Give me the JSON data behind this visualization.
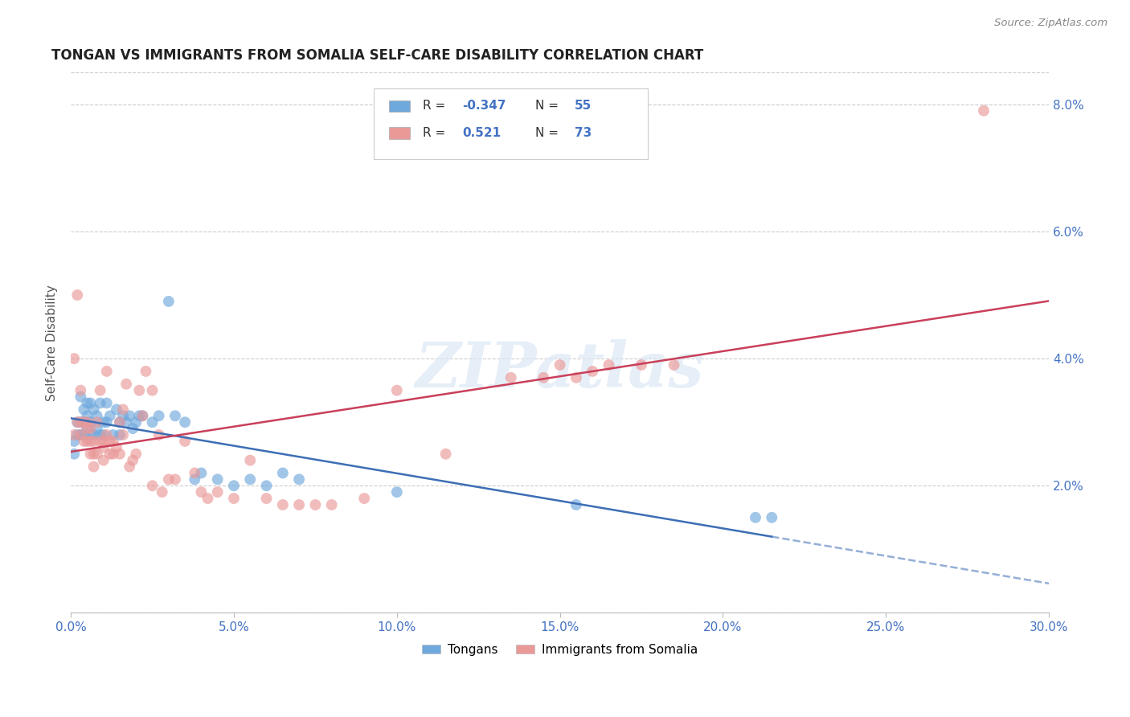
{
  "title": "TONGAN VS IMMIGRANTS FROM SOMALIA SELF-CARE DISABILITY CORRELATION CHART",
  "source": "Source: ZipAtlas.com",
  "ylabel": "Self-Care Disability",
  "xlim": [
    0.0,
    0.3
  ],
  "ylim": [
    0.0,
    0.085
  ],
  "xticks": [
    0.0,
    0.05,
    0.1,
    0.15,
    0.2,
    0.25,
    0.3
  ],
  "yticks": [
    0.0,
    0.02,
    0.04,
    0.06,
    0.08
  ],
  "ytick_labels": [
    "",
    "2.0%",
    "4.0%",
    "6.0%",
    "8.0%"
  ],
  "xtick_labels": [
    "0.0%",
    "5.0%",
    "10.0%",
    "15.0%",
    "20.0%",
    "25.0%",
    "30.0%"
  ],
  "legend_labels": [
    "Tongans",
    "Immigrants from Somalia"
  ],
  "blue_R": "-0.347",
  "blue_N": "55",
  "pink_R": "0.521",
  "pink_N": "73",
  "blue_color": "#6fa8dc",
  "pink_color": "#ea9999",
  "blue_line_color": "#3d6eb5",
  "pink_line_color": "#c9405a",
  "watermark": "ZIPatlas",
  "blue_points_x": [
    0.001,
    0.001,
    0.002,
    0.002,
    0.003,
    0.003,
    0.003,
    0.004,
    0.004,
    0.004,
    0.005,
    0.005,
    0.005,
    0.006,
    0.006,
    0.006,
    0.007,
    0.007,
    0.008,
    0.008,
    0.009,
    0.009,
    0.01,
    0.01,
    0.011,
    0.011,
    0.012,
    0.013,
    0.014,
    0.015,
    0.015,
    0.016,
    0.017,
    0.018,
    0.019,
    0.02,
    0.021,
    0.022,
    0.025,
    0.027,
    0.03,
    0.032,
    0.035,
    0.038,
    0.04,
    0.045,
    0.05,
    0.055,
    0.06,
    0.065,
    0.07,
    0.1,
    0.155,
    0.21,
    0.215
  ],
  "blue_points_y": [
    0.027,
    0.025,
    0.028,
    0.03,
    0.03,
    0.034,
    0.028,
    0.032,
    0.03,
    0.028,
    0.031,
    0.033,
    0.029,
    0.03,
    0.033,
    0.028,
    0.032,
    0.028,
    0.029,
    0.031,
    0.033,
    0.028,
    0.028,
    0.03,
    0.03,
    0.033,
    0.031,
    0.028,
    0.032,
    0.03,
    0.028,
    0.031,
    0.03,
    0.031,
    0.029,
    0.03,
    0.031,
    0.031,
    0.03,
    0.031,
    0.049,
    0.031,
    0.03,
    0.021,
    0.022,
    0.021,
    0.02,
    0.021,
    0.02,
    0.022,
    0.021,
    0.019,
    0.017,
    0.015,
    0.015
  ],
  "pink_points_x": [
    0.001,
    0.001,
    0.002,
    0.002,
    0.003,
    0.003,
    0.003,
    0.004,
    0.004,
    0.005,
    0.005,
    0.005,
    0.006,
    0.006,
    0.006,
    0.007,
    0.007,
    0.007,
    0.008,
    0.008,
    0.009,
    0.009,
    0.01,
    0.01,
    0.01,
    0.011,
    0.011,
    0.012,
    0.012,
    0.013,
    0.013,
    0.014,
    0.015,
    0.015,
    0.016,
    0.016,
    0.017,
    0.018,
    0.019,
    0.02,
    0.021,
    0.022,
    0.023,
    0.025,
    0.027,
    0.028,
    0.03,
    0.032,
    0.035,
    0.038,
    0.04,
    0.042,
    0.045,
    0.05,
    0.055,
    0.06,
    0.065,
    0.07,
    0.075,
    0.08,
    0.09,
    0.1,
    0.115,
    0.135,
    0.145,
    0.15,
    0.155,
    0.16,
    0.165,
    0.175,
    0.185,
    0.28,
    0.025
  ],
  "pink_points_y": [
    0.028,
    0.04,
    0.03,
    0.05,
    0.028,
    0.03,
    0.035,
    0.027,
    0.03,
    0.027,
    0.029,
    0.03,
    0.025,
    0.027,
    0.029,
    0.025,
    0.027,
    0.023,
    0.025,
    0.03,
    0.027,
    0.035,
    0.024,
    0.026,
    0.027,
    0.028,
    0.038,
    0.025,
    0.027,
    0.025,
    0.027,
    0.026,
    0.025,
    0.03,
    0.028,
    0.032,
    0.036,
    0.023,
    0.024,
    0.025,
    0.035,
    0.031,
    0.038,
    0.035,
    0.028,
    0.019,
    0.021,
    0.021,
    0.027,
    0.022,
    0.019,
    0.018,
    0.019,
    0.018,
    0.024,
    0.018,
    0.017,
    0.017,
    0.017,
    0.017,
    0.018,
    0.035,
    0.025,
    0.037,
    0.037,
    0.039,
    0.037,
    0.038,
    0.039,
    0.039,
    0.039,
    0.079,
    0.02
  ],
  "blue_line_start_x": 0.0,
  "blue_line_end_x": 0.215,
  "blue_line_dash_end_x": 0.3,
  "pink_line_start_x": 0.0,
  "pink_line_end_x": 0.3
}
